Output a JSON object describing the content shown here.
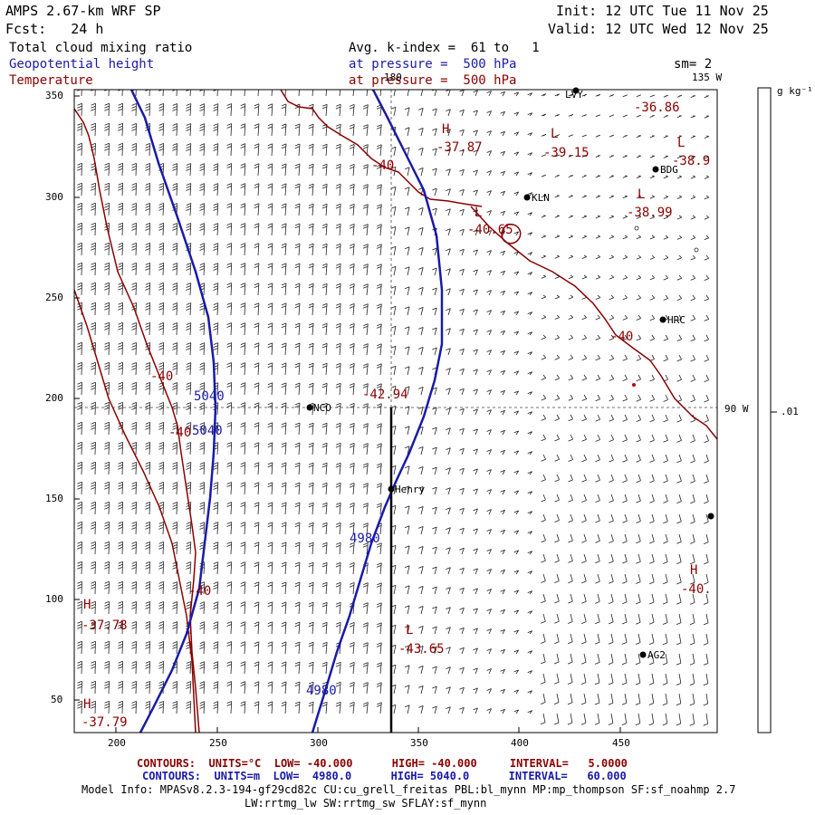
{
  "header": {
    "title": "AMPS 2.67-km WRF SP",
    "fcst": "Fcst:   24 h",
    "init": "Init: 12 UTC Tue 11 Nov 25",
    "valid": "Valid: 12 UTC Wed 12 Nov 25",
    "field1": "Total cloud mixing ratio",
    "field2": "Geopotential height",
    "field3": "Temperature",
    "avg": "Avg. k-index =  61 to   1",
    "pres1": "at pressure =  500 hPa",
    "pres2": "at pressure =  500 hPa",
    "sm": "sm= 2"
  },
  "map": {
    "x_ticks": [
      "200",
      "250",
      "300",
      "350",
      "400",
      "450"
    ],
    "y_ticks": [
      "350",
      "300",
      "250",
      "200",
      "150",
      "100",
      "50"
    ],
    "lon_top": "180",
    "lon_135": "135 W",
    "lon_90": "90 W",
    "stations": [
      {
        "name": "NCO"
      },
      {
        "name": "Henry"
      },
      {
        "name": "KLN"
      },
      {
        "name": "BDG"
      },
      {
        "name": "HRC"
      },
      {
        "name": "AG2"
      },
      {
        "name": "LVY"
      }
    ],
    "height_labels": [
      "5040",
      "5040",
      "4980",
      "4980"
    ],
    "temp_labels": [
      "-40",
      "-40",
      "-40",
      "-40",
      "-40",
      "-40",
      "-40."
    ],
    "extrema": {
      "highs": [
        "H",
        "H",
        "H",
        "H"
      ],
      "lows": [
        "L",
        "L",
        "L",
        "L",
        "L"
      ],
      "values": [
        "-37.87",
        "-39.15",
        "-38.9",
        "-36.86",
        "-40.65",
        "-38.99",
        "-42.94",
        "-43.65",
        "-37.78",
        "-37.79"
      ]
    }
  },
  "colorbar": {
    "units": "g kg⁻¹",
    "tick": ".01"
  },
  "footer": {
    "c1_label": "CONTOURS:",
    "c1_units": "UNITS=°C",
    "c1_low": "LOW= -40.000",
    "c1_high": "HIGH= -40.000",
    "c1_interval": "INTERVAL=   5.0000",
    "c2_label": "CONTOURS:",
    "c2_units": "UNITS=m",
    "c2_low": "LOW=  4980.0",
    "c2_high": "HIGH= 5040.0",
    "c2_interval": "INTERVAL=   60.000",
    "model1": "Model Info: MPASv8.2.3-194-gf29cd82c CU:cu_grell_freitas PBL:bl_mynn MP:mp_thompson SF:sf_noahmp 2.7",
    "model2": "LW:rrtmg_lw SW:rrtmg_sw SFLAY:sf_mynn"
  },
  "colors": {
    "height": "#1a1aa8",
    "temperature": "#8b0000",
    "text": "#000000"
  }
}
